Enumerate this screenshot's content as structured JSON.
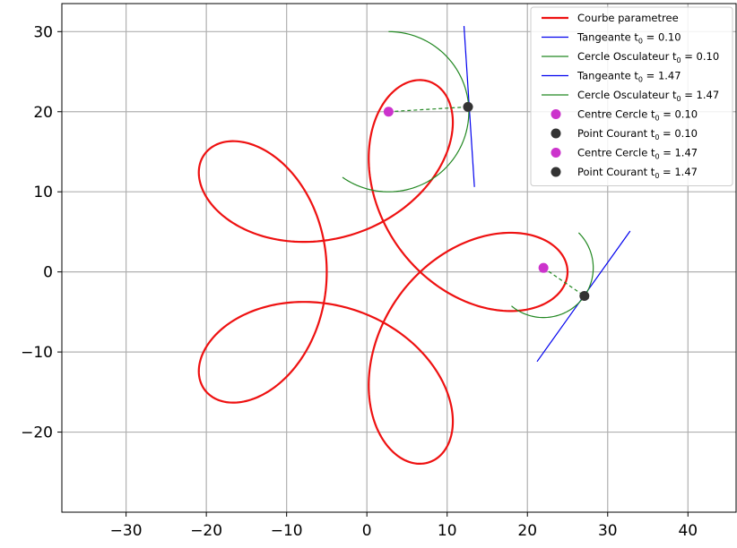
{
  "chart_data": {
    "type": "line",
    "title": "",
    "xlabel": "",
    "ylabel": "",
    "xlim": [
      -38.0,
      46.0
    ],
    "ylim": [
      -30.0,
      33.5
    ],
    "xticks": [
      -30,
      -20,
      -10,
      0,
      10,
      20,
      30,
      40
    ],
    "yticks": [
      -20,
      -10,
      0,
      10,
      20,
      30
    ],
    "xtick_labels": [
      "−30",
      "−20",
      "−10",
      "0",
      "10",
      "20",
      "30",
      "40"
    ],
    "ytick_labels": [
      "−20",
      "−10",
      "0",
      "10",
      "20",
      "30"
    ],
    "grid": true,
    "legend_position": "top-right",
    "curve": {
      "name": "Courbe parametree",
      "color": "#ee1111",
      "x_formula": "15*cos(t) + 10*cos(4t)",
      "y_formula": "15*sin(t) - 10*sin(4t)",
      "t_range": [
        0,
        6.2832
      ]
    },
    "series": [
      {
        "name": "Courbe parametree",
        "type": "curve",
        "color": "#ee1111"
      },
      {
        "name": "Tangeante",
        "t0": "0.10",
        "type": "tangent",
        "color": "#0000ee",
        "points": [
          [
            12.1,
            30.7
          ],
          [
            13.4,
            10.6
          ]
        ]
      },
      {
        "name": "Cercle Osculateur",
        "t0": "0.10",
        "type": "osculating_circle",
        "color": "#228822",
        "center": [
          2.7,
          20.0
        ],
        "radius": 10.0,
        "arc_degrees": [
          -125,
          90
        ]
      },
      {
        "name": "Tangeante",
        "t0": "1.47",
        "type": "tangent",
        "color": "#0000ee",
        "points": [
          [
            21.2,
            -11.2
          ],
          [
            32.8,
            5.1
          ]
        ]
      },
      {
        "name": "Cercle Osculateur",
        "t0": "1.47",
        "type": "osculating_circle",
        "color": "#228822",
        "center": [
          22.0,
          0.5
        ],
        "radius": 6.2,
        "arc_degrees": [
          -130,
          45
        ]
      },
      {
        "name": "Centre Cercle",
        "t0": "0.10",
        "type": "center_point",
        "color": "#cc33cc",
        "point": [
          2.7,
          20.0
        ]
      },
      {
        "name": "Point Courant",
        "t0": "0.10",
        "type": "current_point",
        "color": "#333333",
        "point": [
          12.6,
          20.6
        ]
      },
      {
        "name": "Centre Cercle",
        "t0": "1.47",
        "type": "center_point",
        "color": "#cc33cc",
        "point": [
          22.0,
          0.5
        ]
      },
      {
        "name": "Point Courant",
        "t0": "1.47",
        "type": "current_point",
        "color": "#333333",
        "point": [
          27.1,
          -3.0
        ]
      }
    ],
    "radius_lines": [
      {
        "from": [
          2.7,
          20.0
        ],
        "to": [
          12.6,
          20.6
        ],
        "color": "#228822",
        "style": "dashed"
      },
      {
        "from": [
          22.0,
          0.5
        ],
        "to": [
          27.1,
          -3.0
        ],
        "color": "#228822",
        "style": "dashed"
      }
    ],
    "legend": {
      "entries": [
        {
          "label": "Courbe parametree",
          "sub": "",
          "tail": "",
          "kind": "thick-line",
          "color": "#ee1111"
        },
        {
          "label": "Tangeante t",
          "sub": "0",
          "tail": " = 0.10",
          "kind": "line",
          "color": "#0000ee"
        },
        {
          "label": "Cercle Osculateur t",
          "sub": "0",
          "tail": " = 0.10",
          "kind": "line",
          "color": "#228822"
        },
        {
          "label": "Tangeante t",
          "sub": "0",
          "tail": " = 1.47",
          "kind": "line",
          "color": "#0000ee"
        },
        {
          "label": "Cercle Osculateur t",
          "sub": "0",
          "tail": " = 1.47",
          "kind": "line",
          "color": "#228822"
        },
        {
          "label": "Centre Cercle t",
          "sub": "0",
          "tail": " = 0.10",
          "kind": "dot",
          "color": "#cc33cc"
        },
        {
          "label": "Point Courant t",
          "sub": "0",
          "tail": " = 0.10",
          "kind": "dot",
          "color": "#333333"
        },
        {
          "label": "Centre Cercle t",
          "sub": "0",
          "tail": " = 1.47",
          "kind": "dot",
          "color": "#cc33cc"
        },
        {
          "label": "Point Courant t",
          "sub": "0",
          "tail": " = 1.47",
          "kind": "dot",
          "color": "#333333"
        }
      ]
    }
  }
}
